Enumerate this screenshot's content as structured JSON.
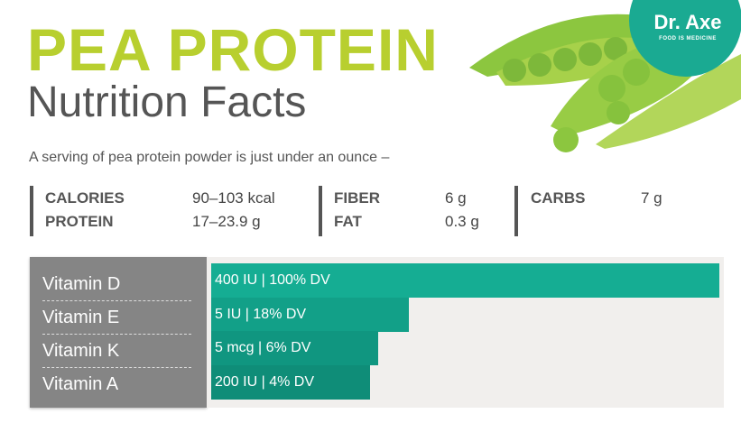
{
  "header": {
    "title": "PEA PROTEIN",
    "subtitle": "Nutrition Facts",
    "intro": "A serving of pea protein powder is just under an ounce –"
  },
  "logo": {
    "text": "Dr. Axe",
    "tagline": "FOOD IS MEDICINE",
    "color": "#1aaa92"
  },
  "stats": [
    {
      "label": "CALORIES",
      "value": "90–103 kcal"
    },
    {
      "label": "PROTEIN",
      "value": "17–23.9 g"
    },
    {
      "label": "FIBER",
      "value": "6 g"
    },
    {
      "label": "FAT",
      "value": "0.3 g"
    },
    {
      "label": "CARBS",
      "value": "7 g"
    }
  ],
  "colors": {
    "title": "#b8cf2f",
    "bar": "#15ad93",
    "label_column": "#858585"
  },
  "chart_data": {
    "type": "bar",
    "orientation": "horizontal",
    "categories": [
      "Vitamin D",
      "Vitamin E",
      "Vitamin K",
      "Vitamin A"
    ],
    "values": [
      100,
      18,
      6,
      4
    ],
    "unit": "% DV",
    "data_labels": [
      "400 IU | 100% DV",
      "5 IU | 18% DV",
      "5 mcg | 6% DV",
      "200 IU | 4% DV"
    ],
    "grid": false
  }
}
